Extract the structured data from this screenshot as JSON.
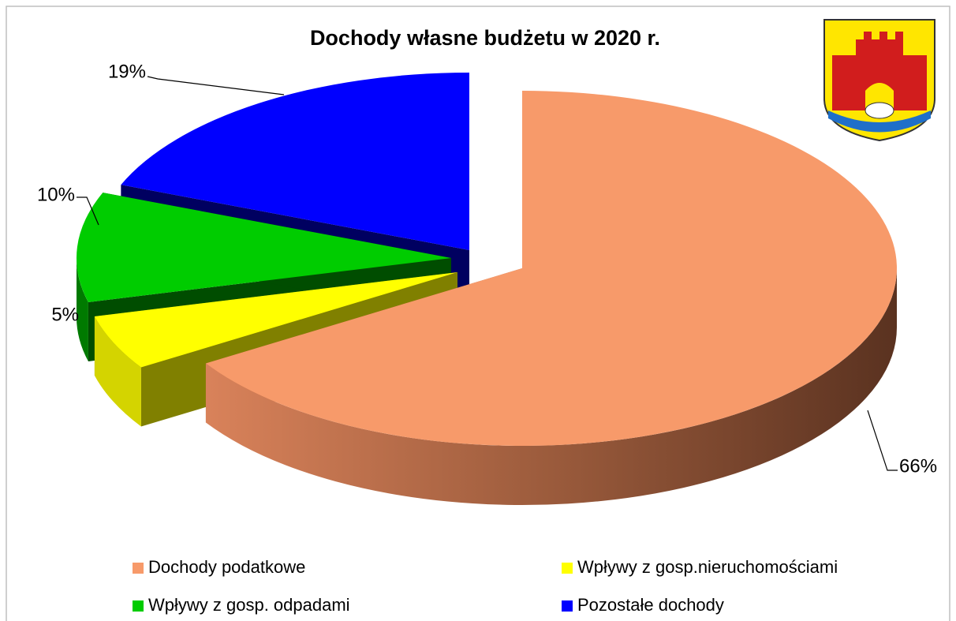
{
  "chart_data": {
    "type": "pie",
    "title": "Dochody własne budżetu w 2020 r.",
    "categories": [
      "Dochody podatkowe",
      "Wpływy z gosp.nieruchomościami",
      "Wpływy z gosp. odpadami",
      "Pozostałe dochody"
    ],
    "values": [
      66,
      5,
      10,
      19
    ],
    "value_labels": [
      "66%",
      "5%",
      "10%",
      "19%"
    ],
    "colors": [
      "#f79a6a",
      "#ffff00",
      "#00cc00",
      "#0000ff"
    ],
    "legend": "bottom"
  }
}
